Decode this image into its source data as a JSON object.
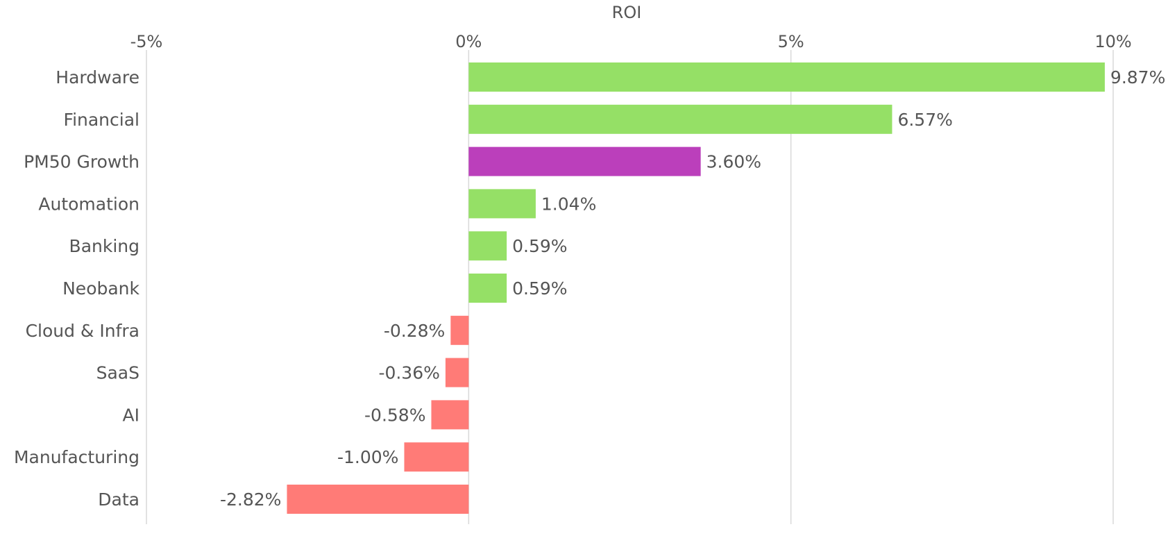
{
  "chart_data": {
    "type": "bar",
    "orientation": "horizontal",
    "title": "",
    "xlabel": "ROI",
    "ylabel": "",
    "x_axis_position": "top",
    "xlim": [
      -5,
      10
    ],
    "x_ticks": [
      {
        "value": -5,
        "label": "-5%"
      },
      {
        "value": 0,
        "label": "0%"
      },
      {
        "value": 5,
        "label": "5%"
      },
      {
        "value": 10,
        "label": "10%"
      }
    ],
    "grid": true,
    "legend": "none",
    "categories": [
      {
        "label": "Hardware",
        "value": 9.87,
        "value_label": "9.87%",
        "color": "#95e066"
      },
      {
        "label": "Financial",
        "value": 6.57,
        "value_label": "6.57%",
        "color": "#95e066"
      },
      {
        "label": "PM50 Growth",
        "value": 3.6,
        "value_label": "3.60%",
        "color": "#bb3fbb"
      },
      {
        "label": "Automation",
        "value": 1.04,
        "value_label": "1.04%",
        "color": "#95e066"
      },
      {
        "label": "Banking",
        "value": 0.59,
        "value_label": "0.59%",
        "color": "#95e066"
      },
      {
        "label": "Neobank",
        "value": 0.59,
        "value_label": "0.59%",
        "color": "#95e066"
      },
      {
        "label": "Cloud & Infra",
        "value": -0.28,
        "value_label": "-0.28%",
        "color": "#ff7b77"
      },
      {
        "label": "SaaS",
        "value": -0.36,
        "value_label": "-0.36%",
        "color": "#ff7b77"
      },
      {
        "label": "AI",
        "value": -0.58,
        "value_label": "-0.58%",
        "color": "#ff7b77"
      },
      {
        "label": "Manufacturing",
        "value": -1.0,
        "value_label": "-1.00%",
        "color": "#ff7b77"
      },
      {
        "label": "Data",
        "value": -2.82,
        "value_label": "-2.82%",
        "color": "#ff7b77"
      }
    ]
  }
}
